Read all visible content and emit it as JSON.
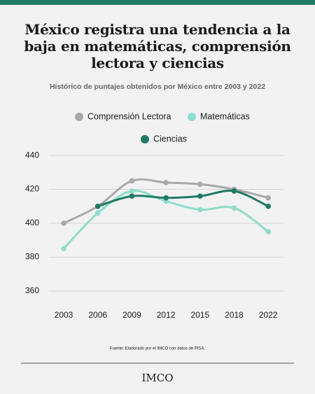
{
  "header": {
    "title": "México registra una tendencia a la baja en matemáticas, comprensión lectora y ciencias",
    "subtitle": "Histórico de puntajes obtenidos por México entre 2003 y 2022"
  },
  "chart_data": {
    "type": "line",
    "categories": [
      "2003",
      "2006",
      "2009",
      "2012",
      "2015",
      "2018",
      "2022"
    ],
    "series": [
      {
        "name": "Comprensión Lectora",
        "color": "#a9a9a9",
        "values": [
          400,
          410,
          425,
          424,
          423,
          420,
          415
        ]
      },
      {
        "name": "Matemáticas",
        "color": "#8fdccb",
        "values": [
          385,
          406,
          419,
          413,
          408,
          409,
          395
        ]
      },
      {
        "name": "Ciencias",
        "color": "#1f7a63",
        "values": [
          null,
          410,
          416,
          415,
          416,
          419,
          410
        ]
      }
    ],
    "ylim": [
      355,
      445
    ],
    "yticks": [
      360,
      380,
      400,
      420,
      440
    ],
    "grid": true
  },
  "footer": {
    "source": "Fuente: Elaborado por el IMCO con datos de PISA.",
    "logo": "IMCO"
  }
}
